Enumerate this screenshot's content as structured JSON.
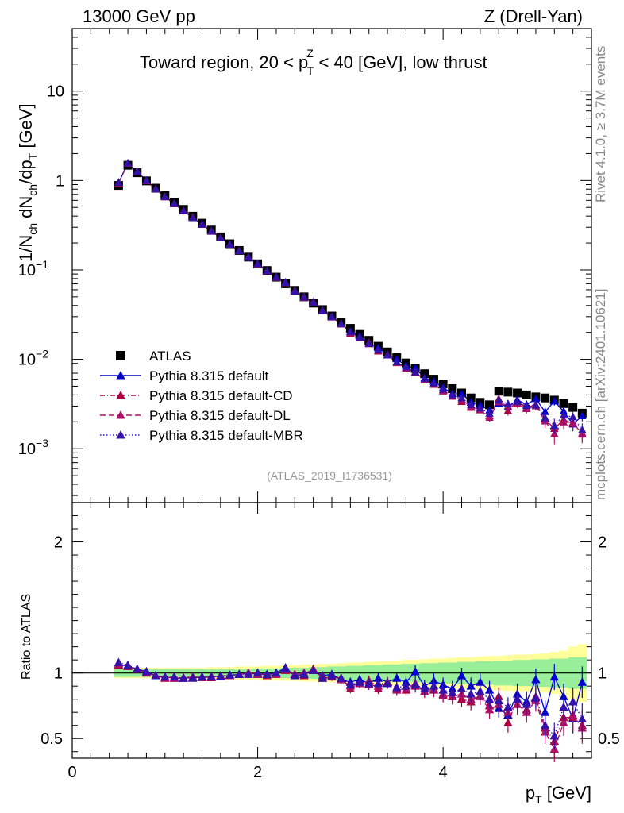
{
  "header": {
    "energy_label": "13000 GeV pp",
    "process_label": "Z (Drell-Yan)",
    "plot_title_pre": "Toward region, 20 < p",
    "plot_title_sup": "Z",
    "plot_title_sub": "T",
    "plot_title_post": " < 40 [GeV], low thrust",
    "side_rivet": "Rivet 4.1.0, ≥ 3.7M events",
    "side_mcplots": "mcplots.cern.ch [arXiv:2401.10621]",
    "analysis_id": "(ATLAS_2019_I1736531)"
  },
  "chart_data": [
    {
      "type": "scatter",
      "panel": "main",
      "title": "Toward region, 20 < pT^Z < 40 [GeV], low thrust",
      "ylabel": "1/N_ch dN_ch/dp_T [GeV]",
      "yscale": "log",
      "xlim": [
        0,
        5.6
      ],
      "ylim": [
        0.00025,
        50
      ],
      "x_ticks": [
        "0",
        "2",
        "4"
      ],
      "y_ticks": [
        {
          "base": "10",
          "exp": "−3",
          "value": 0.001
        },
        {
          "base": "10",
          "exp": "−2",
          "value": 0.01
        },
        {
          "base": "10",
          "exp": "−1",
          "value": 0.1
        },
        {
          "base": "1",
          "exp": "",
          "value": 1
        },
        {
          "base": "10",
          "exp": "",
          "value": 10
        }
      ],
      "x": [
        0.5,
        0.6,
        0.7,
        0.8,
        0.9,
        1.0,
        1.1,
        1.2,
        1.3,
        1.4,
        1.5,
        1.6,
        1.7,
        1.8,
        1.9,
        2.0,
        2.1,
        2.2,
        2.3,
        2.4,
        2.5,
        2.6,
        2.7,
        2.8,
        2.9,
        3.0,
        3.1,
        3.2,
        3.3,
        3.4,
        3.5,
        3.6,
        3.7,
        3.8,
        3.9,
        4.0,
        4.1,
        4.2,
        4.3,
        4.4,
        4.5,
        4.6,
        4.7,
        4.8,
        4.9,
        5.0,
        5.1,
        5.2,
        5.3,
        5.4,
        5.5
      ],
      "legend": [
        {
          "label": "ATLAS",
          "color": "#000000",
          "marker": "square",
          "line": "none"
        },
        {
          "label": "Pythia 8.315 default",
          "color": "#0000cc",
          "marker": "triangle",
          "line": "solid"
        },
        {
          "label": "Pythia 8.315 default-CD",
          "color": "#aa0044",
          "marker": "triangle",
          "line": "dashdot"
        },
        {
          "label": "Pythia 8.315 default-DL",
          "color": "#aa1166",
          "marker": "triangle",
          "line": "dashed"
        },
        {
          "label": "Pythia 8.315 default-MBR",
          "color": "#3311aa",
          "marker": "triangle",
          "line": "dotted"
        }
      ],
      "atlas_values": [
        0.88,
        1.48,
        1.22,
        0.99,
        0.82,
        0.68,
        0.57,
        0.475,
        0.398,
        0.333,
        0.279,
        0.234,
        0.196,
        0.165,
        0.139,
        0.117,
        0.0985,
        0.083,
        0.07,
        0.059,
        0.05,
        0.0425,
        0.036,
        0.0305,
        0.026,
        0.0222,
        0.019,
        0.0163,
        0.014,
        0.0121,
        0.0105,
        0.0091,
        0.0079,
        0.0069,
        0.006,
        0.0053,
        0.0047,
        0.0042,
        0.0037,
        0.0033,
        0.0031,
        0.0044,
        0.0043,
        0.0042,
        0.004,
        0.0038,
        0.0037,
        0.0035,
        0.0032,
        0.0029,
        0.0025
      ],
      "mc_main_factor": [
        1.07,
        1.05,
        1.03,
        1.0,
        0.98,
        0.97,
        0.965,
        0.965,
        0.965,
        0.97,
        0.97,
        0.975,
        0.98,
        0.99,
        1.0,
        1.0,
        0.99,
        0.995,
        1.03,
        0.99,
        1.0,
        1.03,
        0.97,
        0.98,
        0.96,
        0.9,
        0.92,
        0.93,
        0.9,
        0.93,
        0.9,
        0.89,
        0.92,
        0.88,
        0.89,
        0.86,
        0.83,
        0.86,
        0.82,
        0.86,
        0.8,
        0.78,
        0.74,
        0.8,
        0.76,
        0.8,
        0.63,
        0.6,
        0.7,
        0.7,
        0.62
      ]
    },
    {
      "type": "line",
      "panel": "ratio",
      "xlabel_main": "p",
      "xlabel_sub": "T",
      "xlabel_unit": " [GeV]",
      "ylabel": "Ratio to ATLAS",
      "xlim": [
        0,
        5.6
      ],
      "ylim": [
        0.35,
        2.3
      ],
      "y_ticks": [
        "0.5",
        "1",
        "2"
      ],
      "x_ticks": [
        "0",
        "2",
        "4"
      ],
      "x": [
        0.5,
        0.6,
        0.7,
        0.8,
        0.9,
        1.0,
        1.1,
        1.2,
        1.3,
        1.4,
        1.5,
        1.6,
        1.7,
        1.8,
        1.9,
        2.0,
        2.1,
        2.2,
        2.3,
        2.4,
        2.5,
        2.6,
        2.7,
        2.8,
        2.9,
        3.0,
        3.1,
        3.2,
        3.3,
        3.4,
        3.5,
        3.6,
        3.7,
        3.8,
        3.9,
        4.0,
        4.1,
        4.2,
        4.3,
        4.4,
        4.5,
        4.6,
        4.7,
        4.8,
        4.9,
        5.0,
        5.1,
        5.2,
        5.3,
        5.4,
        5.5
      ],
      "band_inner": [
        0.03,
        0.03,
        0.03,
        0.03,
        0.03,
        0.03,
        0.03,
        0.03,
        0.03,
        0.03,
        0.03,
        0.03,
        0.03,
        0.03,
        0.03,
        0.035,
        0.035,
        0.035,
        0.04,
        0.04,
        0.04,
        0.045,
        0.045,
        0.05,
        0.05,
        0.055,
        0.055,
        0.06,
        0.06,
        0.065,
        0.065,
        0.07,
        0.07,
        0.075,
        0.075,
        0.08,
        0.08,
        0.085,
        0.085,
        0.09,
        0.09,
        0.095,
        0.095,
        0.1,
        0.1,
        0.105,
        0.105,
        0.11,
        0.11,
        0.12,
        0.12
      ],
      "band_outer": [
        0.04,
        0.04,
        0.04,
        0.04,
        0.04,
        0.04,
        0.04,
        0.04,
        0.04,
        0.04,
        0.045,
        0.045,
        0.045,
        0.05,
        0.05,
        0.05,
        0.055,
        0.055,
        0.06,
        0.06,
        0.065,
        0.065,
        0.07,
        0.07,
        0.075,
        0.08,
        0.08,
        0.085,
        0.09,
        0.09,
        0.095,
        0.1,
        0.1,
        0.105,
        0.11,
        0.11,
        0.115,
        0.12,
        0.12,
        0.125,
        0.13,
        0.13,
        0.135,
        0.14,
        0.14,
        0.145,
        0.15,
        0.16,
        0.17,
        0.2,
        0.22
      ],
      "series": [
        {
          "name": "Pythia 8.315 default",
          "color": "#0000cc",
          "dash": "",
          "values": [
            1.07,
            1.05,
            1.03,
            1.01,
            0.98,
            0.97,
            0.96,
            0.96,
            0.965,
            0.965,
            0.97,
            0.975,
            0.98,
            0.99,
            1.0,
            0.99,
            0.99,
            1.0,
            1.04,
            0.98,
            0.99,
            1.02,
            0.98,
            0.99,
            0.95,
            0.93,
            0.95,
            0.92,
            0.96,
            0.93,
            0.96,
            0.93,
            1.01,
            0.9,
            0.94,
            0.91,
            0.88,
            0.98,
            0.9,
            0.93,
            0.87,
            0.73,
            0.68,
            0.84,
            0.78,
            0.95,
            0.7,
            0.97,
            0.82,
            0.65,
            0.93
          ],
          "errors": [
            0.01,
            0.01,
            0.01,
            0.01,
            0.01,
            0.01,
            0.01,
            0.01,
            0.01,
            0.01,
            0.01,
            0.01,
            0.01,
            0.01,
            0.01,
            0.015,
            0.015,
            0.015,
            0.02,
            0.02,
            0.02,
            0.025,
            0.025,
            0.03,
            0.03,
            0.035,
            0.035,
            0.04,
            0.04,
            0.04,
            0.045,
            0.045,
            0.05,
            0.05,
            0.055,
            0.055,
            0.06,
            0.06,
            0.065,
            0.065,
            0.07,
            0.07,
            0.075,
            0.08,
            0.08,
            0.085,
            0.09,
            0.1,
            0.1,
            0.11,
            0.12
          ]
        },
        {
          "name": "Pythia 8.315 default-CD",
          "color": "#aa0044",
          "dash": "6,3,1,3",
          "values": [
            1.06,
            1.05,
            1.03,
            1.0,
            0.98,
            0.96,
            0.97,
            0.96,
            0.97,
            0.97,
            0.965,
            0.98,
            0.98,
            0.99,
            1.0,
            1.0,
            0.98,
            0.99,
            1.02,
            0.99,
            0.98,
            1.03,
            0.96,
            0.97,
            0.96,
            0.88,
            0.92,
            0.94,
            0.88,
            0.93,
            0.88,
            0.87,
            0.9,
            0.86,
            0.87,
            0.84,
            0.82,
            0.8,
            0.78,
            0.83,
            0.75,
            0.82,
            0.62,
            0.8,
            0.72,
            0.82,
            0.58,
            0.48,
            0.66,
            0.66,
            0.6
          ],
          "errors": [
            0.01,
            0.01,
            0.01,
            0.01,
            0.01,
            0.01,
            0.01,
            0.01,
            0.01,
            0.01,
            0.01,
            0.01,
            0.01,
            0.01,
            0.01,
            0.015,
            0.015,
            0.015,
            0.02,
            0.02,
            0.02,
            0.025,
            0.025,
            0.03,
            0.03,
            0.035,
            0.035,
            0.04,
            0.04,
            0.04,
            0.045,
            0.045,
            0.05,
            0.05,
            0.055,
            0.055,
            0.06,
            0.06,
            0.065,
            0.065,
            0.07,
            0.07,
            0.075,
            0.08,
            0.08,
            0.085,
            0.09,
            0.1,
            0.1,
            0.11,
            0.12
          ]
        },
        {
          "name": "Pythia 8.315 default-DL",
          "color": "#aa1166",
          "dash": "7,4",
          "values": [
            1.07,
            1.05,
            1.03,
            1.0,
            0.98,
            0.97,
            0.96,
            0.965,
            0.97,
            0.965,
            0.975,
            0.975,
            0.98,
            0.99,
            1.0,
            0.99,
            0.99,
            0.99,
            1.03,
            0.99,
            1.0,
            1.02,
            0.97,
            0.98,
            0.95,
            0.9,
            0.92,
            0.91,
            0.9,
            0.92,
            0.87,
            0.88,
            0.92,
            0.86,
            0.88,
            0.83,
            0.82,
            0.84,
            0.8,
            0.82,
            0.72,
            0.76,
            0.7,
            0.76,
            0.7,
            0.79,
            0.55,
            0.42,
            0.62,
            0.68,
            0.58
          ],
          "errors": [
            0.01,
            0.01,
            0.01,
            0.01,
            0.01,
            0.01,
            0.01,
            0.01,
            0.01,
            0.01,
            0.01,
            0.01,
            0.01,
            0.01,
            0.01,
            0.015,
            0.015,
            0.015,
            0.02,
            0.02,
            0.02,
            0.025,
            0.025,
            0.03,
            0.03,
            0.035,
            0.035,
            0.04,
            0.04,
            0.04,
            0.045,
            0.045,
            0.05,
            0.05,
            0.055,
            0.055,
            0.06,
            0.06,
            0.065,
            0.065,
            0.07,
            0.07,
            0.075,
            0.08,
            0.08,
            0.085,
            0.09,
            0.1,
            0.1,
            0.11,
            0.12
          ]
        },
        {
          "name": "Pythia 8.315 default-MBR",
          "color": "#3311aa",
          "dash": "1.5,2.5",
          "values": [
            1.08,
            1.06,
            1.03,
            1.01,
            0.98,
            0.97,
            0.97,
            0.96,
            0.96,
            0.97,
            0.97,
            0.975,
            0.985,
            0.99,
            0.99,
            1.0,
            0.99,
            1.0,
            1.03,
            0.98,
            0.99,
            1.02,
            0.96,
            0.98,
            0.96,
            0.91,
            0.93,
            0.92,
            0.92,
            0.92,
            0.89,
            0.9,
            0.91,
            0.88,
            0.9,
            0.87,
            0.85,
            0.88,
            0.84,
            0.86,
            0.8,
            0.79,
            0.74,
            0.8,
            0.76,
            0.81,
            0.6,
            0.52,
            0.74,
            0.78,
            0.65
          ],
          "errors": [
            0.01,
            0.01,
            0.01,
            0.01,
            0.01,
            0.01,
            0.01,
            0.01,
            0.01,
            0.01,
            0.01,
            0.01,
            0.01,
            0.01,
            0.01,
            0.015,
            0.015,
            0.015,
            0.02,
            0.02,
            0.02,
            0.025,
            0.025,
            0.03,
            0.03,
            0.035,
            0.035,
            0.04,
            0.04,
            0.04,
            0.045,
            0.045,
            0.05,
            0.05,
            0.055,
            0.055,
            0.06,
            0.06,
            0.065,
            0.065,
            0.07,
            0.07,
            0.075,
            0.08,
            0.08,
            0.085,
            0.09,
            0.1,
            0.1,
            0.11,
            0.12
          ]
        }
      ]
    }
  ]
}
